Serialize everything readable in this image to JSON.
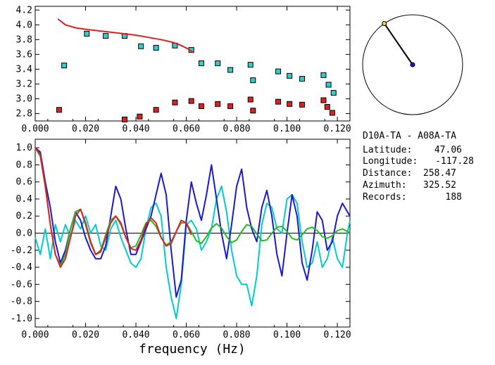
{
  "info": {
    "pair": "D10A-TA  -  A08A-TA",
    "rows": [
      {
        "label": "Latitude:",
        "value": "47.06"
      },
      {
        "label": "Longitude:",
        "value": "-117.28"
      },
      {
        "label": "Distance:",
        "value": "258.47"
      },
      {
        "label": "Azimuth:",
        "value": "325.52"
      },
      {
        "label": "Records:",
        "value": "188"
      }
    ]
  },
  "chart_data": [
    {
      "type": "scatter",
      "title": "",
      "xlabel": "",
      "ylabel": "",
      "xlim": [
        0.0,
        0.125
      ],
      "ylim": [
        2.7,
        4.25
      ],
      "x_ticks": [
        "0.000",
        "0.020",
        "0.040",
        "0.060",
        "0.080",
        "0.100",
        "0.120"
      ],
      "y_ticks": [
        "2.8",
        "3.0",
        "3.2",
        "3.4",
        "3.6",
        "3.8",
        "4.0",
        "4.2"
      ],
      "series": [
        {
          "color": "#33cccc",
          "marker": "square",
          "x": [
            0.0115,
            0.0205,
            0.028,
            0.0355,
            0.042,
            0.048,
            0.0555,
            0.062,
            0.066,
            0.0725,
            0.0775,
            0.0855,
            0.0865,
            0.0965,
            0.101,
            0.106,
            0.1145,
            0.1165,
            0.1185
          ],
          "y": [
            3.45,
            3.88,
            3.85,
            3.85,
            3.71,
            3.69,
            3.72,
            3.66,
            3.48,
            3.48,
            3.39,
            3.46,
            3.25,
            3.37,
            3.31,
            3.27,
            3.32,
            3.19,
            3.08
          ]
        },
        {
          "color": "#e02020",
          "marker": "square",
          "x": [
            0.0095,
            0.0355,
            0.0415,
            0.048,
            0.0555,
            0.062,
            0.066,
            0.0725,
            0.0775,
            0.0855,
            0.0865,
            0.0965,
            0.101,
            0.106,
            0.1145,
            0.116,
            0.118
          ],
          "y": [
            2.85,
            2.72,
            2.76,
            2.85,
            2.95,
            2.97,
            2.9,
            2.93,
            2.9,
            2.99,
            2.84,
            2.96,
            2.93,
            2.92,
            2.98,
            2.89,
            2.81
          ]
        },
        {
          "color": "#e02020",
          "marker": "line",
          "x": [
            0.009,
            0.012,
            0.016,
            0.02,
            0.025,
            0.03,
            0.035,
            0.04,
            0.045,
            0.05,
            0.055,
            0.058,
            0.061,
            0.063
          ],
          "y": [
            4.08,
            4.0,
            3.96,
            3.94,
            3.92,
            3.9,
            3.88,
            3.86,
            3.83,
            3.8,
            3.76,
            3.72,
            3.67,
            3.62
          ]
        }
      ]
    },
    {
      "type": "line",
      "title": "",
      "xlabel": "frequency (Hz)",
      "ylabel": "",
      "xlim": [
        0.0,
        0.125
      ],
      "ylim": [
        -1.1,
        1.1
      ],
      "x_ticks": [
        "0.000",
        "0.020",
        "0.040",
        "0.060",
        "0.080",
        "0.100",
        "0.120"
      ],
      "y_ticks": [
        "1.0",
        "0.8",
        "0.6",
        "0.4",
        "0.2",
        "0.0",
        "-0.2",
        "-0.4",
        "-0.6",
        "-0.8",
        "-1.0"
      ],
      "series": [
        {
          "color": "#00cccc",
          "x": [
            0.0,
            0.002,
            0.004,
            0.006,
            0.008,
            0.01,
            0.012,
            0.014,
            0.016,
            0.018,
            0.02,
            0.022,
            0.024,
            0.026,
            0.028,
            0.03,
            0.032,
            0.034,
            0.036,
            0.038,
            0.04,
            0.042,
            0.044,
            0.046,
            0.048,
            0.05,
            0.052,
            0.054,
            0.056,
            0.058,
            0.06,
            0.062,
            0.064,
            0.066,
            0.068,
            0.07,
            0.072,
            0.074,
            0.076,
            0.078,
            0.08,
            0.082,
            0.084,
            0.086,
            0.088,
            0.09,
            0.092,
            0.094,
            0.096,
            0.098,
            0.1,
            0.102,
            0.104,
            0.106,
            0.108,
            0.11,
            0.112,
            0.114,
            0.116,
            0.118,
            0.12,
            0.122,
            0.124,
            0.125
          ],
          "y": [
            -0.05,
            -0.25,
            0.05,
            -0.3,
            0.1,
            -0.1,
            0.1,
            -0.05,
            0.15,
            0.05,
            0.2,
            0.0,
            0.1,
            -0.15,
            -0.2,
            0.05,
            0.15,
            -0.05,
            -0.2,
            -0.35,
            -0.4,
            -0.3,
            0.05,
            0.3,
            0.35,
            0.2,
            -0.4,
            -0.75,
            -1.0,
            -0.6,
            0.1,
            0.15,
            0.05,
            -0.2,
            -0.1,
            0.05,
            0.4,
            0.55,
            0.25,
            -0.2,
            -0.5,
            -0.6,
            -0.6,
            -0.85,
            -0.5,
            0.1,
            0.35,
            0.3,
            0.05,
            0.0,
            0.4,
            0.45,
            0.35,
            -0.1,
            -0.4,
            -0.35,
            -0.1,
            -0.4,
            -0.3,
            -0.05,
            -0.3,
            -0.4,
            0.0,
            0.15
          ]
        },
        {
          "color": "#1a1acc",
          "x": [
            0.0,
            0.002,
            0.004,
            0.006,
            0.008,
            0.01,
            0.012,
            0.014,
            0.016,
            0.018,
            0.02,
            0.022,
            0.024,
            0.026,
            0.028,
            0.03,
            0.032,
            0.034,
            0.036,
            0.038,
            0.04,
            0.042,
            0.044,
            0.046,
            0.048,
            0.05,
            0.052,
            0.054,
            0.056,
            0.058,
            0.06,
            0.062,
            0.064,
            0.066,
            0.068,
            0.07,
            0.072,
            0.074,
            0.076,
            0.078,
            0.08,
            0.082,
            0.084,
            0.086,
            0.088,
            0.09,
            0.092,
            0.094,
            0.096,
            0.098,
            0.1,
            0.102,
            0.104,
            0.106,
            0.108,
            0.11,
            0.112,
            0.114,
            0.116,
            0.118,
            0.12,
            0.122,
            0.124,
            0.125
          ],
          "y": [
            1.0,
            0.95,
            0.6,
            0.3,
            -0.1,
            -0.35,
            -0.2,
            0.05,
            0.25,
            0.15,
            -0.05,
            -0.2,
            -0.3,
            -0.3,
            -0.15,
            0.2,
            0.55,
            0.4,
            0.05,
            -0.25,
            -0.25,
            -0.1,
            0.05,
            0.2,
            0.45,
            0.7,
            0.45,
            -0.2,
            -0.75,
            -0.55,
            0.15,
            0.6,
            0.35,
            0.15,
            0.45,
            0.8,
            0.4,
            0.0,
            -0.3,
            0.1,
            0.55,
            0.75,
            0.3,
            0.05,
            -0.1,
            0.3,
            0.5,
            0.2,
            -0.25,
            -0.5,
            0.0,
            0.45,
            0.2,
            -0.35,
            -0.55,
            -0.2,
            0.25,
            0.15,
            -0.2,
            -0.1,
            0.2,
            0.35,
            0.25,
            0.2
          ]
        },
        {
          "color": "#22bb22",
          "x": [
            0.0,
            0.002,
            0.004,
            0.006,
            0.008,
            0.01,
            0.012,
            0.014,
            0.016,
            0.018,
            0.02,
            0.022,
            0.024,
            0.026,
            0.028,
            0.03,
            0.032,
            0.034,
            0.036,
            0.038,
            0.04,
            0.042,
            0.044,
            0.046,
            0.048,
            0.05,
            0.052,
            0.054,
            0.056,
            0.058,
            0.06,
            0.062,
            0.064,
            0.066,
            0.068,
            0.07,
            0.072,
            0.074,
            0.076,
            0.078,
            0.08,
            0.082,
            0.084,
            0.086,
            0.088,
            0.09,
            0.092,
            0.094,
            0.096,
            0.098,
            0.1,
            0.102,
            0.104,
            0.106,
            0.108,
            0.11,
            0.112,
            0.114,
            0.116,
            0.118,
            0.12,
            0.122,
            0.124,
            0.125
          ],
          "y": [
            1.0,
            0.9,
            0.55,
            0.1,
            -0.25,
            -0.38,
            -0.25,
            0.05,
            0.25,
            0.28,
            0.1,
            -0.12,
            -0.25,
            -0.2,
            -0.02,
            0.15,
            0.2,
            0.1,
            -0.05,
            -0.17,
            -0.15,
            -0.02,
            0.12,
            0.15,
            0.08,
            -0.05,
            -0.14,
            -0.1,
            0.02,
            0.12,
            0.12,
            0.02,
            -0.09,
            -0.12,
            -0.04,
            0.06,
            0.11,
            0.06,
            -0.04,
            -0.11,
            -0.08,
            0.02,
            0.1,
            0.08,
            -0.01,
            -0.09,
            -0.08,
            0.0,
            0.07,
            0.08,
            0.02,
            -0.06,
            -0.08,
            -0.02,
            0.05,
            0.07,
            0.03,
            -0.04,
            -0.06,
            -0.03,
            0.03,
            0.05,
            0.02,
            0.0
          ]
        },
        {
          "color": "#e02020",
          "x": [
            0.0,
            0.002,
            0.004,
            0.006,
            0.008,
            0.01,
            0.012,
            0.014,
            0.016,
            0.018,
            0.02,
            0.022,
            0.024,
            0.026,
            0.028,
            0.03,
            0.032,
            0.034,
            0.036,
            0.038,
            0.04,
            0.042,
            0.044,
            0.046,
            0.048,
            0.05,
            0.052,
            0.054,
            0.056,
            0.058,
            0.06,
            0.062
          ],
          "y": [
            1.0,
            0.92,
            0.55,
            0.1,
            -0.25,
            -0.4,
            -0.3,
            -0.05,
            0.2,
            0.28,
            0.12,
            -0.1,
            -0.25,
            -0.22,
            -0.05,
            0.12,
            0.2,
            0.12,
            -0.05,
            -0.18,
            -0.2,
            -0.08,
            0.1,
            0.18,
            0.12,
            -0.05,
            -0.15,
            -0.12,
            0.02,
            0.15,
            0.12,
            -0.02
          ]
        }
      ]
    }
  ],
  "azimuth_plot": {
    "azimuth_deg": 325.52,
    "needle_color": "#000000",
    "center_color": "#1a1acc",
    "tip_color": "#ffcc33"
  }
}
